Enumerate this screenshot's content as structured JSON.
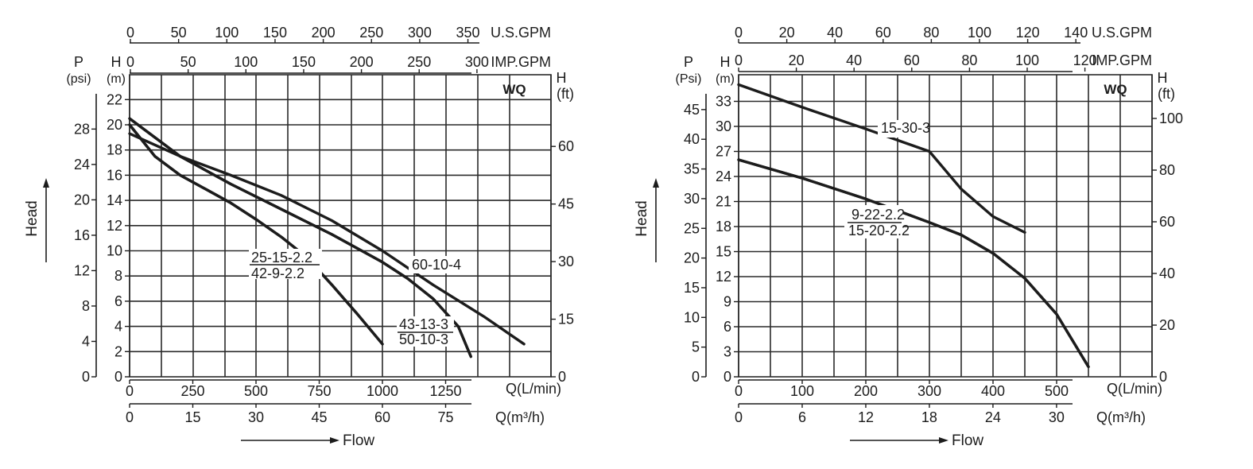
{
  "chart_data": [
    {
      "type": "line",
      "badge": "WQ",
      "xlabel": "Flow",
      "ylabel": "Head",
      "axes": {
        "top_usgpm": {
          "title": "U.S.GPM",
          "ticks": [
            "0",
            "50",
            "100",
            "150",
            "200",
            "250",
            "300",
            "350"
          ],
          "values": [
            0,
            50,
            100,
            150,
            200,
            250,
            300,
            350
          ]
        },
        "top_impgpm": {
          "title": "IMP.GPM",
          "ticks": [
            "0",
            "50",
            "100",
            "150",
            "200",
            "250",
            "300"
          ],
          "values": [
            0,
            50,
            100,
            150,
            200,
            250,
            300
          ]
        },
        "bottom_lmin": {
          "title": "Q(L/min)",
          "ticks": [
            "0",
            "250",
            "500",
            "750",
            "1000",
            "1250"
          ],
          "values": [
            0,
            250,
            500,
            750,
            1000,
            1250
          ]
        },
        "bottom_m3h": {
          "title": "Q(m³/h)",
          "ticks": [
            "0",
            "15",
            "30",
            "45",
            "60",
            "75"
          ],
          "values": [
            0,
            15,
            30,
            45,
            60,
            75
          ]
        },
        "left_m": {
          "title": "H",
          "unit": "(m)",
          "ticks": [
            "0",
            "2",
            "4",
            "6",
            "8",
            "10",
            "12",
            "14",
            "16",
            "18",
            "20",
            "22"
          ],
          "values": [
            0,
            2,
            4,
            6,
            8,
            10,
            12,
            14,
            16,
            18,
            20,
            22
          ]
        },
        "left_psi": {
          "title": "P",
          "unit": "(psi)",
          "ticks": [
            "0",
            "4",
            "8",
            "12",
            "16",
            "20",
            "24",
            "28"
          ],
          "values": [
            0,
            4,
            8,
            12,
            16,
            20,
            24,
            28
          ]
        },
        "right_ft": {
          "title": "H",
          "unit": "(ft)",
          "ticks": [
            "0",
            "15",
            "30",
            "45",
            "60"
          ],
          "values": [
            0,
            15,
            30,
            45,
            60
          ]
        }
      },
      "xlim": [
        0,
        1650
      ],
      "ylim": [
        0,
        24
      ],
      "series": [
        {
          "name": "25-15-2.2",
          "x": [
            0,
            100,
            200,
            300,
            400,
            500,
            600,
            700,
            800,
            900,
            1000
          ],
          "y": [
            20.0,
            17.5,
            16.0,
            14.9,
            13.8,
            12.5,
            11.1,
            9.5,
            7.3,
            5.0,
            2.6
          ]
        },
        {
          "name": "42-9-2.2",
          "x": [
            0,
            100,
            200,
            300,
            400,
            500,
            600,
            700,
            800,
            900,
            1000
          ],
          "y": [
            20.0,
            17.5,
            16.0,
            14.9,
            13.8,
            12.5,
            11.1,
            9.5,
            7.3,
            5.0,
            2.6
          ]
        },
        {
          "name": "43-13-3",
          "x": [
            0,
            200,
            400,
            600,
            800,
            1000,
            1100,
            1200,
            1300,
            1350
          ],
          "y": [
            20.5,
            17.5,
            15.3,
            13.3,
            11.3,
            9.1,
            7.8,
            6.2,
            4.0,
            1.6
          ]
        },
        {
          "name": "50-10-3",
          "x": [
            0,
            200,
            400,
            600,
            800,
            1000,
            1100,
            1200,
            1300,
            1350
          ],
          "y": [
            20.5,
            17.5,
            15.3,
            13.3,
            11.3,
            9.1,
            7.8,
            6.2,
            4.0,
            1.6
          ]
        },
        {
          "name": "60-10-4",
          "x": [
            0,
            200,
            400,
            600,
            800,
            1000,
            1200,
            1400,
            1560
          ],
          "y": [
            19.3,
            17.5,
            16.0,
            14.4,
            12.4,
            10.0,
            7.3,
            4.8,
            2.6
          ]
        }
      ],
      "annotations": [
        "25-15-2.2",
        "42-9-2.2",
        "43-13-3",
        "50-10-3",
        "60-10-4"
      ]
    },
    {
      "type": "line",
      "badge": "WQ",
      "xlabel": "Flow",
      "ylabel": "Head",
      "axes": {
        "top_usgpm": {
          "title": "U.S.GPM",
          "ticks": [
            "0",
            "20",
            "40",
            "60",
            "80",
            "100",
            "120",
            "140"
          ],
          "values": [
            0,
            20,
            40,
            60,
            80,
            100,
            120,
            140
          ]
        },
        "top_impgpm": {
          "title": "IMP.GPM",
          "ticks": [
            "0",
            "20",
            "40",
            "60",
            "80",
            "100",
            "120"
          ],
          "values": [
            0,
            20,
            40,
            60,
            80,
            100,
            120
          ]
        },
        "bottom_lmin": {
          "title": "Q(L/min)",
          "ticks": [
            "0",
            "100",
            "200",
            "300",
            "400",
            "500"
          ],
          "values": [
            0,
            100,
            200,
            300,
            400,
            500
          ]
        },
        "bottom_m3h": {
          "title": "Q(m³/h)",
          "ticks": [
            "0",
            "6",
            "12",
            "18",
            "24",
            "30"
          ],
          "values": [
            0,
            6,
            12,
            18,
            24,
            30
          ]
        },
        "left_m": {
          "title": "H",
          "unit": "(m)",
          "ticks": [
            "0",
            "3",
            "6",
            "9",
            "12",
            "15",
            "18",
            "21",
            "24",
            "27",
            "30",
            "33"
          ],
          "values": [
            0,
            3,
            6,
            9,
            12,
            15,
            18,
            21,
            24,
            27,
            30,
            33
          ]
        },
        "left_psi": {
          "title": "P",
          "unit": "(Psi)",
          "ticks": [
            "0",
            "5",
            "10",
            "15",
            "20",
            "25",
            "30",
            "35",
            "40",
            "45"
          ],
          "values": [
            0,
            5,
            10,
            15,
            20,
            25,
            30,
            35,
            40,
            45
          ]
        },
        "right_ft": {
          "title": "H",
          "unit": "(ft)",
          "ticks": [
            "0",
            "20",
            "40",
            "60",
            "80",
            "100"
          ],
          "values": [
            0,
            20,
            40,
            60,
            80,
            100
          ]
        }
      },
      "xlim": [
        0,
        625
      ],
      "ylim": [
        0,
        36
      ],
      "series": [
        {
          "name": "15-30-3",
          "x": [
            0,
            100,
            200,
            300,
            350,
            400,
            450
          ],
          "y": [
            35.0,
            32.3,
            29.7,
            27.0,
            22.5,
            19.2,
            17.3
          ]
        },
        {
          "name": "9-22-2.2",
          "x": [
            0,
            100,
            200,
            300,
            350,
            400,
            450,
            500,
            550
          ],
          "y": [
            26.0,
            23.8,
            21.3,
            18.5,
            17.0,
            14.8,
            11.8,
            7.5,
            1.2
          ]
        },
        {
          "name": "15-20-2.2",
          "x": [
            0,
            100,
            200,
            300,
            350,
            400,
            450,
            500,
            550
          ],
          "y": [
            26.0,
            23.8,
            21.3,
            18.5,
            17.0,
            14.8,
            11.8,
            7.5,
            1.2
          ]
        }
      ],
      "annotations": [
        "15-30-3",
        "9-22-2.2",
        "15-20-2.2"
      ]
    }
  ]
}
